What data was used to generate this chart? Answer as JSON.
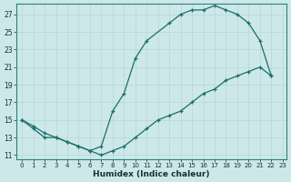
{
  "xlabel": "Humidex (Indice chaleur)",
  "xlim": [
    -0.5,
    23.3
  ],
  "ylim": [
    10.5,
    28.2
  ],
  "xticks": [
    0,
    1,
    2,
    3,
    4,
    5,
    6,
    7,
    8,
    9,
    10,
    11,
    12,
    13,
    14,
    15,
    16,
    17,
    18,
    19,
    20,
    21,
    22,
    23
  ],
  "yticks": [
    11,
    13,
    15,
    17,
    19,
    21,
    23,
    25,
    27
  ],
  "bg_color": "#cde8e8",
  "grid_color": "#b8d4d4",
  "line_color": "#1a6e6e",
  "curve1_x": [
    0,
    1,
    2,
    3,
    4,
    5,
    6,
    7,
    8,
    9,
    10,
    11,
    13,
    14,
    15,
    16,
    17,
    18,
    19,
    20,
    21,
    22
  ],
  "curve1_y": [
    15,
    14,
    13,
    13,
    12.5,
    12,
    11.5,
    12,
    16,
    18,
    22,
    24,
    26,
    27,
    27.5,
    27.5,
    28,
    27.5,
    27,
    26,
    24,
    20
  ],
  "curve2_x": [
    0,
    1,
    2,
    3,
    4,
    5,
    6,
    7,
    8,
    9,
    10,
    11,
    12,
    13,
    14,
    15,
    16,
    17,
    18,
    19,
    20,
    21,
    22
  ],
  "curve2_y": [
    15,
    14.3,
    13.5,
    13,
    12.5,
    12,
    11.5,
    11,
    11.5,
    12,
    13,
    14,
    15,
    15.5,
    16,
    17,
    18,
    18.5,
    19.5,
    20,
    20.5,
    21,
    20
  ]
}
